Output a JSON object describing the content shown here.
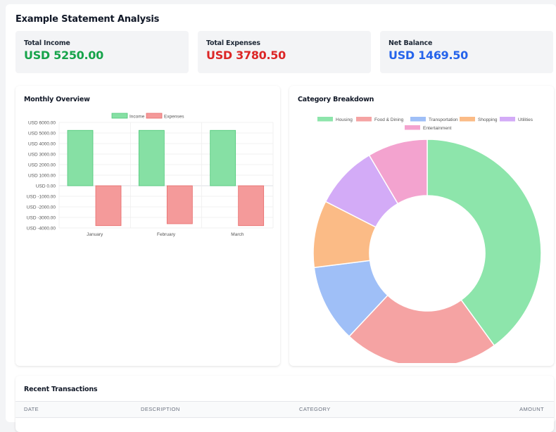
{
  "page": {
    "title": "Example Statement Analysis"
  },
  "stats": [
    {
      "label": "Total Income",
      "value": "USD 5250.00",
      "color": "#16a34a"
    },
    {
      "label": "Total Expenses",
      "value": "USD 3780.50",
      "color": "#dc2626"
    },
    {
      "label": "Net Balance",
      "value": "USD 1469.50",
      "color": "#2563eb"
    }
  ],
  "monthly": {
    "title": "Monthly Overview"
  },
  "category": {
    "title": "Category Breakdown"
  },
  "transactions": {
    "title": "Recent Transactions",
    "columns": [
      "DATE",
      "DESCRIPTION",
      "CATEGORY",
      "AMOUNT"
    ]
  },
  "chart_data": [
    {
      "type": "bar",
      "categories": [
        "January",
        "February",
        "March"
      ],
      "series": [
        {
          "name": "Income",
          "values": [
            5250,
            5250,
            5250
          ],
          "color": "#86e0a4"
        },
        {
          "name": "Expenses",
          "values": [
            -3780.5,
            -3600,
            -3780.5
          ],
          "color": "#f49a9a"
        }
      ],
      "ylim": [
        -4000,
        6000
      ],
      "yticks": [
        "USD 6000.00",
        "USD 5000.00",
        "USD 4000.00",
        "USD 3000.00",
        "USD 2000.00",
        "USD 1000.00",
        "USD 0.00",
        "USD -1000.00",
        "USD -2000.00",
        "USD -3000.00",
        "USD -4000.00"
      ],
      "legend": "top-center",
      "grid": true
    },
    {
      "type": "pie",
      "donut": true,
      "labels": [
        "Housing",
        "Food & Dining",
        "Transportation",
        "Shopping",
        "Utilities",
        "Entertainment"
      ],
      "values": [
        40,
        22,
        11,
        9.5,
        9,
        8.5
      ],
      "colors": [
        "#8de5ab",
        "#f5a3a3",
        "#9fbff7",
        "#fbbb86",
        "#d3abf7",
        "#f3a3cf"
      ],
      "legend": "top-center"
    }
  ]
}
